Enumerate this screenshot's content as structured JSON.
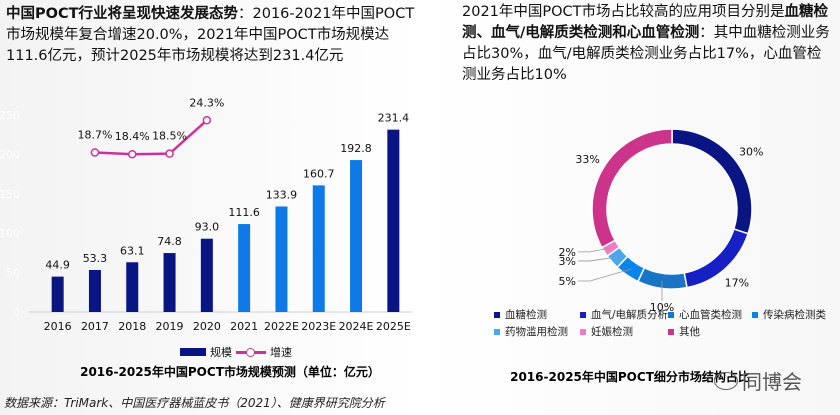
{
  "left_panel": {
    "headline_bold": "中国POCT行业将呈现快速发展态势",
    "headline_rest": "：2016-2021年中国POCT市场规模年复合增速20.0%，2021年中国POCT市场规模达111.6亿元，预计2025年市场规模将达到231.4亿元",
    "legend": {
      "bar_label": "规模",
      "line_label": "增速"
    },
    "caption": "2016-2025年中国POCT市场规模预测（单位：亿元）"
  },
  "right_panel": {
    "headline_part1": "2021年中国POCT市场占比较高的应用项目分别是",
    "headline_bold": "血糖检测、血气/电解质类检测和心血管检测",
    "headline_rest": "：其中血糖检测业务占比30%，血气/电解质类检测业务占比17%，心血管检测业务占比10%",
    "caption": "2016-2025年中国POCT细分市场结构占比"
  },
  "source_note": "数据来源：TriMark、中国医疗器械蓝皮书（2021）、健康界研究院分析",
  "watermark": "同博会",
  "colors": {
    "bar_actual": "#0a1584",
    "bar_forecast": "#0f7ae5",
    "line": "#cc3399"
  },
  "chart_data": [
    {
      "type": "bar",
      "title": "2016-2025年中国POCT市场规模预测（单位：亿元）",
      "xlabel": "",
      "ylabel": "",
      "categories": [
        "2016",
        "2017",
        "2018",
        "2019",
        "2020",
        "2021",
        "2022E",
        "2023E",
        "2024E",
        "2025E"
      ],
      "ylim": [
        0,
        250
      ],
      "yticks": [
        "0",
        "50",
        "100",
        "150",
        "200",
        "250"
      ],
      "grid": false,
      "legend": "bottom",
      "series": [
        {
          "name": "规模",
          "type": "bar",
          "values": [
            44.9,
            53.3,
            63.1,
            74.8,
            93.0,
            111.6,
            133.9,
            160.7,
            192.8,
            231.4
          ],
          "labels": [
            "44.9",
            "53.3",
            "63.1",
            "74.8",
            "93.0",
            "111.6",
            "133.9",
            "160.7",
            "192.8",
            "231.4"
          ],
          "colors": [
            "#0a1584",
            "#0a1584",
            "#0a1584",
            "#0a1584",
            "#0a1584",
            "#0f7ae5",
            "#0f7ae5",
            "#0f7ae5",
            "#0f7ae5",
            "#0a1584"
          ]
        },
        {
          "name": "增速",
          "type": "line",
          "categories": [
            "2017",
            "2018",
            "2019",
            "2020"
          ],
          "values": [
            18.7,
            18.4,
            18.5,
            24.3
          ],
          "labels": [
            "18.7%",
            "18.4%",
            "18.5%",
            "24.3%"
          ]
        }
      ]
    },
    {
      "type": "pie",
      "style": "donut",
      "title": "2016-2025年中国POCT细分市场结构占比",
      "legend": "bottom",
      "slices": [
        {
          "label": "血糖检测",
          "value": 30,
          "text": "30%",
          "color": "#0a1584"
        },
        {
          "label": "血气/电解质分析",
          "value": 17,
          "text": "17%",
          "color": "#1620c4"
        },
        {
          "label": "心血管类检测",
          "value": 10,
          "text": "10%",
          "color": "#1a74c4"
        },
        {
          "label": "传染病检测类",
          "value": 5,
          "text": "5%",
          "color": "#0a84ea"
        },
        {
          "label": "药物滥用检测",
          "value": 3,
          "text": "3%",
          "color": "#4ba6ec"
        },
        {
          "label": "妊娠检测",
          "value": 2,
          "text": "2%",
          "color": "#f27bc6"
        },
        {
          "label": "其他",
          "value": 33,
          "text": "33%",
          "color": "#cc338a"
        }
      ]
    }
  ]
}
